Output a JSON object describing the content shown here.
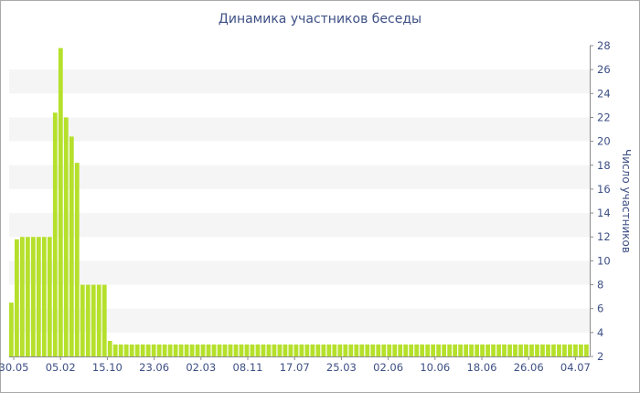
{
  "chart_data": {
    "type": "bar",
    "title": "Динамика участников беседы",
    "xlabel": "",
    "ylabel": "Число участников",
    "ylim": [
      2,
      28
    ],
    "y_ticks": [
      2,
      4,
      6,
      8,
      10,
      12,
      14,
      16,
      18,
      20,
      22,
      24,
      26,
      28
    ],
    "x_tick_labels": [
      "30.05",
      "05.02",
      "15.10",
      "23.06",
      "02.03",
      "08.11",
      "17.07",
      "25.03",
      "02.06",
      "10.06",
      "18.06",
      "26.06",
      "04.07"
    ],
    "bar_color": "#b5e02b",
    "stripe_color": "#f5f5f5",
    "values": [
      6.5,
      11.8,
      12,
      12,
      12,
      12,
      12,
      12,
      22.4,
      27.8,
      22,
      20.4,
      18.2,
      8,
      8,
      8,
      8,
      8,
      3.3,
      3,
      3,
      3,
      3,
      3,
      3,
      3,
      3,
      3,
      3,
      3,
      3,
      3,
      3,
      3,
      3,
      3,
      3,
      3,
      3,
      3,
      3,
      3,
      3,
      3,
      3,
      3,
      3,
      3,
      3,
      3,
      3,
      3,
      3,
      3,
      3,
      3,
      3,
      3,
      3,
      3,
      3,
      3,
      3,
      3,
      3,
      3,
      3,
      3,
      3,
      3,
      3,
      3,
      3,
      3,
      3,
      3,
      3,
      3,
      3,
      3,
      3,
      3,
      3,
      3,
      3,
      3,
      3,
      3,
      3,
      3,
      3,
      3,
      3,
      3,
      3,
      3,
      3,
      3,
      3,
      3,
      3,
      3,
      3,
      3,
      3,
      3
    ]
  }
}
